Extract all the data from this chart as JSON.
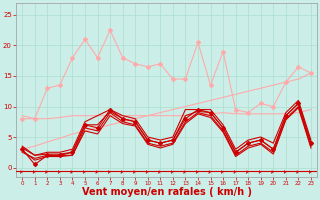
{
  "background_color": "#cceee8",
  "grid_color": "#aaddcc",
  "xlabel": "Vent moyen/en rafales ( km/h )",
  "xlabel_color": "#cc0000",
  "xlabel_fontsize": 7,
  "tick_color": "#cc0000",
  "yticks": [
    0,
    5,
    10,
    15,
    20,
    25
  ],
  "xticks": [
    0,
    1,
    2,
    3,
    4,
    5,
    6,
    7,
    8,
    9,
    10,
    11,
    12,
    13,
    14,
    15,
    16,
    17,
    18,
    19,
    20,
    21,
    22,
    23
  ],
  "xlim": [
    -0.5,
    23.5
  ],
  "ylim": [
    -1.5,
    27
  ],
  "series": [
    {
      "x": [
        0,
        1,
        2,
        3,
        4,
        5,
        6,
        7,
        8,
        9,
        10,
        11,
        12,
        13,
        14,
        15,
        16,
        17,
        18,
        19,
        20,
        21,
        22,
        23
      ],
      "y": [
        8.0,
        8.0,
        13.0,
        13.5,
        18.0,
        21.0,
        18.0,
        22.5,
        18.0,
        17.0,
        16.5,
        17.0,
        14.5,
        14.5,
        20.5,
        13.5,
        19.0,
        9.5,
        9.0,
        10.5,
        10.0,
        14.0,
        16.5,
        15.5
      ],
      "color": "#ffaaaa",
      "linewidth": 0.8,
      "marker": "D",
      "markersize": 2.0,
      "zorder": 3
    },
    {
      "x": [
        0,
        1,
        2,
        3,
        4,
        5,
        6,
        7,
        8,
        9,
        10,
        11,
        12,
        13,
        14,
        15,
        16,
        17,
        18,
        19,
        20,
        21,
        22,
        23
      ],
      "y": [
        8.5,
        8.0,
        8.0,
        8.2,
        8.5,
        8.5,
        8.5,
        8.5,
        8.5,
        8.5,
        8.5,
        8.5,
        8.5,
        8.5,
        8.7,
        8.8,
        9.0,
        8.8,
        8.8,
        8.8,
        8.8,
        8.8,
        9.0,
        9.5
      ],
      "color": "#ffaaaa",
      "linewidth": 0.8,
      "marker": null,
      "markersize": 0,
      "zorder": 3
    },
    {
      "x": [
        0,
        1,
        2,
        3,
        4,
        5,
        6,
        7,
        8,
        9,
        10,
        11,
        12,
        13,
        14,
        15,
        16,
        17,
        18,
        19,
        20,
        21,
        22,
        23
      ],
      "y": [
        3.0,
        3.5,
        4.2,
        4.8,
        5.5,
        6.0,
        6.5,
        7.0,
        7.5,
        8.0,
        8.5,
        9.0,
        9.5,
        10.0,
        10.5,
        11.0,
        11.5,
        12.0,
        12.5,
        13.0,
        13.5,
        14.0,
        14.5,
        15.5
      ],
      "color": "#ffaaaa",
      "linewidth": 0.8,
      "marker": null,
      "markersize": 0,
      "zorder": 3
    },
    {
      "x": [
        0,
        1,
        2,
        3,
        4,
        5,
        6,
        7,
        8,
        9,
        10,
        11,
        12,
        13,
        14,
        15,
        16,
        17,
        18,
        19,
        20,
        21,
        22,
        23
      ],
      "y": [
        3.0,
        0.5,
        2.0,
        2.0,
        2.5,
        7.0,
        6.5,
        9.5,
        8.0,
        7.5,
        4.5,
        4.0,
        4.5,
        8.0,
        9.5,
        9.0,
        6.5,
        2.5,
        4.0,
        4.5,
        3.0,
        8.5,
        10.5,
        4.0
      ],
      "color": "#cc0000",
      "linewidth": 0.8,
      "marker": "D",
      "markersize": 2.0,
      "zorder": 5
    },
    {
      "x": [
        0,
        1,
        2,
        3,
        4,
        5,
        6,
        7,
        8,
        9,
        10,
        11,
        12,
        13,
        14,
        15,
        16,
        17,
        18,
        19,
        20,
        21,
        22,
        23
      ],
      "y": [
        3.5,
        2.0,
        2.5,
        2.5,
        3.0,
        7.5,
        8.5,
        9.5,
        8.5,
        8.0,
        5.0,
        4.5,
        5.0,
        9.5,
        9.5,
        9.5,
        7.0,
        3.0,
        4.5,
        5.0,
        4.0,
        9.0,
        11.0,
        4.5
      ],
      "color": "#cc0000",
      "linewidth": 0.8,
      "marker": null,
      "markersize": 0,
      "zorder": 4
    },
    {
      "x": [
        0,
        1,
        2,
        3,
        4,
        5,
        6,
        7,
        8,
        9,
        10,
        11,
        12,
        13,
        14,
        15,
        16,
        17,
        18,
        19,
        20,
        21,
        22,
        23
      ],
      "y": [
        2.5,
        1.5,
        2.0,
        2.0,
        2.0,
        6.5,
        6.0,
        9.0,
        7.5,
        7.0,
        4.0,
        3.5,
        4.0,
        7.5,
        9.0,
        8.5,
        6.0,
        2.0,
        3.5,
        4.0,
        2.5,
        8.0,
        10.0,
        3.5
      ],
      "color": "#cc0000",
      "linewidth": 0.8,
      "marker": null,
      "markersize": 0,
      "zorder": 4
    },
    {
      "x": [
        0,
        1,
        2,
        3,
        4,
        5,
        6,
        7,
        8,
        9,
        10,
        11,
        12,
        13,
        14,
        15,
        16,
        17,
        18,
        19,
        20,
        21,
        22,
        23
      ],
      "y": [
        3.2,
        2.0,
        2.2,
        2.2,
        2.5,
        7.0,
        7.0,
        9.2,
        8.0,
        7.5,
        4.5,
        4.0,
        4.5,
        8.5,
        9.2,
        9.0,
        6.5,
        2.5,
        4.0,
        4.5,
        3.0,
        8.5,
        10.5,
        4.0
      ],
      "color": "#cc0000",
      "linewidth": 0.8,
      "marker": null,
      "markersize": 0,
      "zorder": 4
    },
    {
      "x": [
        0,
        1,
        2,
        3,
        4,
        5,
        6,
        7,
        8,
        9,
        10,
        11,
        12,
        13,
        14,
        15,
        16,
        17,
        18,
        19,
        20,
        21,
        22,
        23
      ],
      "y": [
        2.8,
        1.2,
        1.8,
        1.8,
        2.0,
        6.0,
        5.5,
        8.5,
        7.2,
        6.8,
        3.8,
        3.2,
        3.8,
        7.2,
        8.8,
        8.2,
        5.8,
        1.8,
        3.2,
        3.8,
        2.2,
        7.8,
        9.8,
        3.2
      ],
      "color": "#cc0000",
      "linewidth": 0.8,
      "marker": null,
      "markersize": 0,
      "zorder": 4
    }
  ],
  "arrow_color": "#cc0000",
  "bottom_line_color": "#cc0000",
  "bottom_line_y": -0.5
}
